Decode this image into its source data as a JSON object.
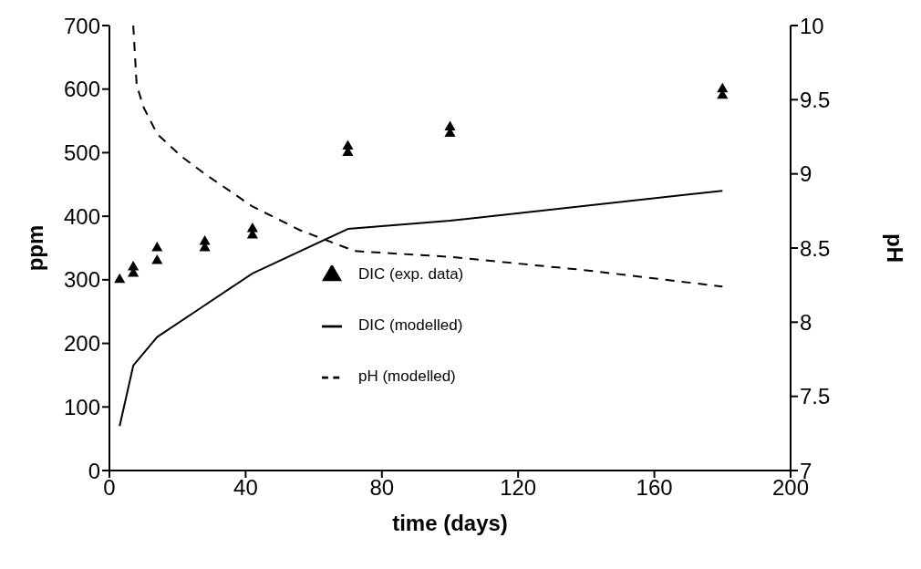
{
  "chart_data": {
    "type": "line",
    "xlabel": "time  (days)",
    "ylabel": "ppm",
    "y2label": "pH",
    "xlim": [
      0,
      200
    ],
    "xticks": [
      0,
      40,
      80,
      120,
      160,
      200
    ],
    "ylim": [
      0,
      700
    ],
    "yticks": [
      0,
      100,
      200,
      300,
      400,
      500,
      600,
      700
    ],
    "y2lim": [
      7,
      10
    ],
    "y2ticks": [
      7,
      {
        "value": 7.5,
        "label": "7.5"
      },
      8,
      {
        "value": 8.5,
        "label": "8.5"
      },
      9,
      {
        "value": 9.5,
        "label": "9.5"
      },
      10
    ],
    "grid": false,
    "legend": "center",
    "series": [
      {
        "name": "DIC (exp. data)",
        "type": "scatter",
        "color": "#000000",
        "marker": "triangle",
        "x": [
          3,
          7,
          7,
          14,
          14,
          28,
          28,
          42,
          42,
          70,
          70,
          100,
          100,
          180,
          180
        ],
        "values": [
          300,
          310,
          320,
          330,
          350,
          350,
          360,
          370,
          380,
          500,
          510,
          530,
          540,
          590,
          600
        ]
      },
      {
        "name": "DIC (modelled)",
        "color": "#000000",
        "line_style": "solid",
        "marker": "none",
        "x": [
          3,
          7,
          14,
          28,
          42,
          70,
          100,
          180
        ],
        "values": [
          70,
          165,
          210,
          260,
          310,
          380,
          393,
          440
        ]
      },
      {
        "name": "pH (modelled)",
        "axis": "y2",
        "color": "#000000",
        "line_style": "dashed",
        "marker": "none",
        "x": [
          7,
          8,
          10,
          14,
          21,
          28,
          42,
          56,
          72,
          100,
          140,
          180
        ],
        "values": [
          10,
          9.6,
          9.45,
          9.27,
          9.12,
          9.0,
          8.78,
          8.62,
          8.48,
          8.44,
          8.35,
          8.24
        ]
      }
    ]
  }
}
